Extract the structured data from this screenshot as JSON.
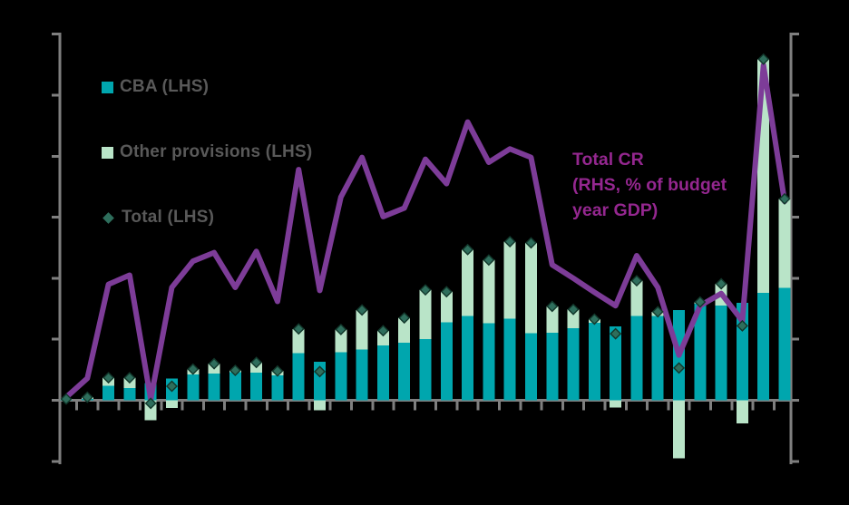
{
  "chart_data": {
    "type": "bar+line",
    "title": "",
    "n_points": 35,
    "note": "No axis tick labels are visible in the image; values are expressed in grid units where 1 unit = one tick interval and 0 = bar baseline. Left axis spans -1 to 6 units (8 unlabeled ticks); right axis has identical unlabeled tick geometry.",
    "categories_visible": false,
    "series": [
      {
        "name": "CBA (LHS)",
        "type": "bar",
        "stack": "provisions",
        "color": "#00a6ae",
        "values": [
          0.01,
          0.02,
          0.24,
          0.2,
          0.28,
          0.36,
          0.42,
          0.44,
          0.46,
          0.45,
          0.41,
          0.77,
          0.63,
          0.79,
          0.83,
          0.9,
          0.94,
          1.0,
          1.28,
          1.38,
          1.26,
          1.34,
          1.1,
          1.11,
          1.18,
          1.27,
          1.21,
          1.38,
          1.38,
          1.48,
          1.58,
          1.55,
          1.6,
          1.76,
          1.84
        ]
      },
      {
        "name": "Other provisions (LHS)",
        "type": "bar",
        "stack": "provisions",
        "color": "#b9e4c8",
        "values": [
          0.01,
          0.03,
          0.13,
          0.17,
          -0.33,
          -0.13,
          0.09,
          0.16,
          0.03,
          0.17,
          0.07,
          0.4,
          -0.16,
          0.37,
          0.65,
          0.24,
          0.41,
          0.81,
          0.5,
          1.09,
          1.04,
          1.26,
          1.48,
          0.43,
          0.31,
          0.06,
          -0.12,
          0.58,
          0.07,
          -0.95,
          0.03,
          0.36,
          -0.38,
          3.83,
          1.46
        ]
      },
      {
        "name": "Total (LHS)",
        "type": "scatter",
        "marker": "diamond",
        "color": "#2e6e5c",
        "values": [
          0.02,
          0.05,
          0.37,
          0.37,
          -0.05,
          0.23,
          0.51,
          0.6,
          0.49,
          0.62,
          0.48,
          1.17,
          0.47,
          1.16,
          1.48,
          1.14,
          1.35,
          1.81,
          1.78,
          2.47,
          2.3,
          2.6,
          2.58,
          1.54,
          1.49,
          1.33,
          1.09,
          1.96,
          1.45,
          0.53,
          1.61,
          1.91,
          1.22,
          5.59,
          3.3
        ]
      },
      {
        "name": "Total CR (RHS, % of budget year GDP)",
        "type": "line",
        "axis": "right",
        "color": "#7d3c98",
        "values": [
          0.05,
          0.36,
          1.9,
          2.05,
          0.02,
          1.85,
          2.28,
          2.42,
          1.85,
          2.44,
          1.62,
          3.78,
          1.8,
          3.33,
          3.98,
          3.01,
          3.15,
          3.95,
          3.55,
          4.56,
          3.9,
          4.12,
          3.98,
          2.22,
          2.0,
          1.77,
          1.55,
          2.37,
          1.85,
          0.74,
          1.55,
          1.75,
          1.3,
          5.49,
          3.26
        ]
      }
    ],
    "left_axis": {
      "min": -1,
      "max": 6,
      "tick_count": 8,
      "labels_visible": false
    },
    "right_axis": {
      "min": -1,
      "max": 6,
      "tick_count": 8,
      "labels_visible": false
    },
    "x_axis": {
      "tick_count": 34,
      "labels_visible": false
    },
    "grid": false,
    "legend_position": "top-left-inside",
    "colors": {
      "axis": "#7f7f7f",
      "background": "#000000",
      "bar_cba": "#00a6ae",
      "bar_other": "#b9e4c8",
      "diamond_fill": "#2e6e5c",
      "diamond_stroke": "#12372b",
      "line": "#7d3c98",
      "legend_text": "#595959",
      "annotation_text": "#94278f"
    }
  },
  "legend": {
    "items": [
      {
        "label": "CBA (LHS)",
        "swatch": "square",
        "color": "#00a6ae"
      },
      {
        "label": "Other provisions (LHS)",
        "swatch": "square",
        "color": "#b9e4c8"
      },
      {
        "label": "Total (LHS)",
        "swatch": "diamond",
        "color": "#2e6e5c"
      }
    ]
  },
  "annotation": {
    "lines": [
      "Total CR",
      "(RHS, % of budget",
      "year GDP)"
    ],
    "color": "#94278f"
  }
}
